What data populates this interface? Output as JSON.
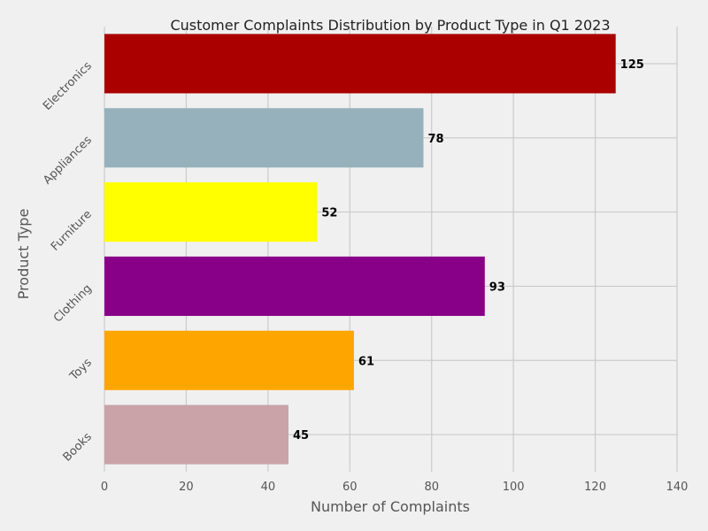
{
  "chart_data": {
    "type": "bar",
    "orientation": "horizontal",
    "title": "Customer Complaints Distribution by Product Type in Q1 2023",
    "xlabel": "Number of Complaints",
    "ylabel": "Product Type",
    "xlim": [
      0,
      140
    ],
    "xticks": [
      "0",
      "20",
      "40",
      "60",
      "80",
      "100",
      "120",
      "140"
    ],
    "categories": [
      "Books",
      "Toys",
      "Clothing",
      "Furniture",
      "Appliances",
      "Electronics"
    ],
    "values": [
      45,
      61,
      93,
      52,
      78,
      125
    ],
    "colors": [
      "#c9a3a8",
      "#ffa500",
      "#880088",
      "#ffff00",
      "#96b1bb",
      "#aa0000"
    ],
    "data_labels": [
      "45",
      "61",
      "93",
      "52",
      "78",
      "125"
    ],
    "grid": true,
    "legend": false
  }
}
